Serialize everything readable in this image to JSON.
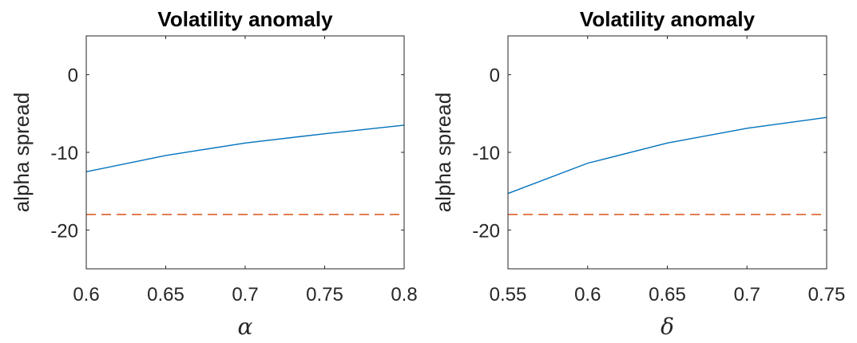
{
  "chart_data": [
    {
      "type": "line",
      "title": "Volatility anomaly",
      "xlabel": "α",
      "ylabel": "alpha spread",
      "xlim": [
        0.6,
        0.8
      ],
      "ylim": [
        -25,
        5
      ],
      "xticks": [
        0.6,
        0.65,
        0.7,
        0.75,
        0.8
      ],
      "xtick_labels": [
        "0.6",
        "0.65",
        "0.7",
        "0.75",
        "0.8"
      ],
      "yticks": [
        0,
        -10,
        -20
      ],
      "ytick_labels": [
        "0",
        "-10",
        "-20"
      ],
      "grid": false,
      "series": [
        {
          "x": [
            0.6,
            0.65,
            0.7,
            0.75,
            0.8
          ],
          "values": [
            -12.5,
            -10.4,
            -8.8,
            -7.6,
            -6.5
          ],
          "color": "#0072BD",
          "style": "solid"
        },
        {
          "x": [
            0.6,
            0.8
          ],
          "values": [
            -18,
            -18
          ],
          "color": "#D95319",
          "style": "dashed"
        }
      ]
    },
    {
      "type": "line",
      "title": "Volatility anomaly",
      "xlabel": "δ",
      "ylabel": "alpha spread",
      "xlim": [
        0.55,
        0.75
      ],
      "ylim": [
        -25,
        5
      ],
      "xticks": [
        0.55,
        0.6,
        0.65,
        0.7,
        0.75
      ],
      "xtick_labels": [
        "0.55",
        "0.6",
        "0.65",
        "0.7",
        "0.75"
      ],
      "yticks": [
        0,
        -10,
        -20
      ],
      "ytick_labels": [
        "0",
        "-10",
        "-20"
      ],
      "grid": false,
      "series": [
        {
          "x": [
            0.55,
            0.6,
            0.65,
            0.7,
            0.75
          ],
          "values": [
            -15.3,
            -11.4,
            -8.8,
            -6.9,
            -5.5
          ],
          "color": "#0072BD",
          "style": "solid"
        },
        {
          "x": [
            0.55,
            0.75
          ],
          "values": [
            -18,
            -18
          ],
          "color": "#D95319",
          "style": "dashed"
        }
      ]
    }
  ]
}
